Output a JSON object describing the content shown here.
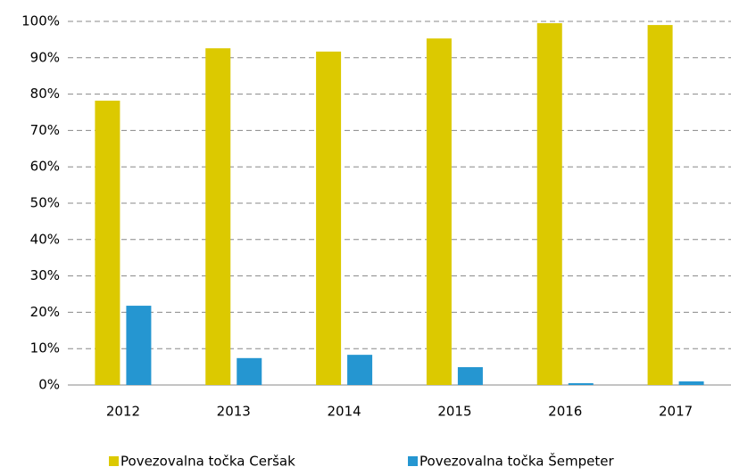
{
  "chart_data": {
    "type": "bar",
    "categories": [
      "2012",
      "2013",
      "2014",
      "2015",
      "2016",
      "2017"
    ],
    "series": [
      {
        "name": "Povezovalna točka Ceršak",
        "color": "#dcc900",
        "values": [
          78.2,
          92.6,
          91.7,
          95.3,
          99.5,
          99.0
        ]
      },
      {
        "name": "Povezovalna točka Šempeter",
        "color": "#2596d1",
        "values": [
          21.8,
          7.4,
          8.3,
          4.9,
          0.5,
          1.0
        ]
      }
    ],
    "ylim": [
      0,
      100
    ],
    "yticks": [
      {
        "value": 0,
        "label": "0%"
      },
      {
        "value": 10,
        "label": "10%"
      },
      {
        "value": 20,
        "label": "20%"
      },
      {
        "value": 30,
        "label": "30%"
      },
      {
        "value": 40,
        "label": "40%"
      },
      {
        "value": 50,
        "label": "50%"
      },
      {
        "value": 60,
        "label": "60%"
      },
      {
        "value": 70,
        "label": "70%"
      },
      {
        "value": 80,
        "label": "80%"
      },
      {
        "value": 90,
        "label": "90%"
      },
      {
        "value": 100,
        "label": "100%"
      }
    ],
    "grid": true,
    "legend": "bottom"
  }
}
